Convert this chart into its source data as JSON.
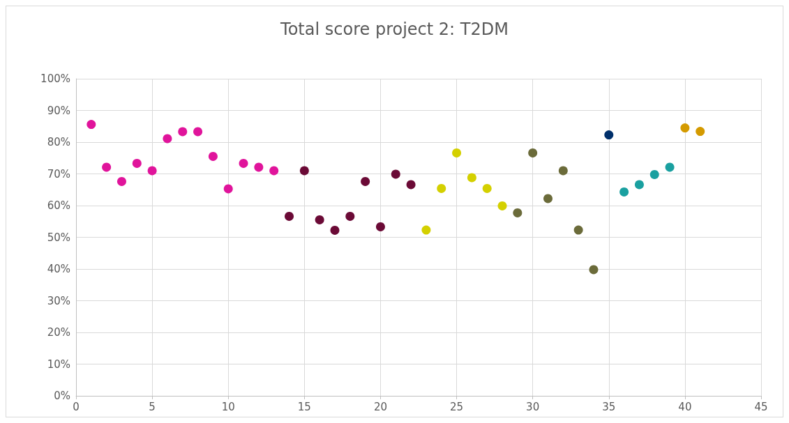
{
  "chart_data": {
    "type": "scatter",
    "title": "Total score project 2: T2DM",
    "series": [
      {
        "color": "#e0149b",
        "x": [
          1,
          2,
          3,
          4,
          5,
          6,
          7,
          8,
          9,
          10,
          11,
          12,
          13
        ],
        "values": [
          85.6,
          72.1,
          67.6,
          73.3,
          71.0,
          81.1,
          83.3,
          83.3,
          75.5,
          65.3,
          73.3,
          72.1,
          71.0
        ]
      },
      {
        "color": "#6b0a36",
        "x": [
          14,
          15,
          16,
          17,
          18,
          19,
          20,
          21,
          22
        ],
        "values": [
          56.6,
          71.0,
          55.5,
          52.2,
          56.6,
          67.6,
          53.3,
          69.9,
          66.6
        ]
      },
      {
        "color": "#d4d000",
        "x": [
          23,
          24,
          25,
          26,
          27,
          28
        ],
        "values": [
          52.3,
          65.4,
          76.6,
          68.8,
          65.4,
          59.9
        ]
      },
      {
        "color": "#6b6b3a",
        "x": [
          29,
          30,
          31,
          32,
          33,
          34
        ],
        "values": [
          57.7,
          76.6,
          62.2,
          71.0,
          52.3,
          39.8
        ]
      },
      {
        "color": "#00306b",
        "x": [
          35
        ],
        "values": [
          82.3
        ]
      },
      {
        "color": "#1aa0a0",
        "x": [
          36,
          37,
          38,
          39
        ],
        "values": [
          64.3,
          66.6,
          69.8,
          72.1
        ]
      },
      {
        "color": "#d49a00",
        "x": [
          40,
          41
        ],
        "values": [
          84.5,
          83.4
        ]
      }
    ],
    "xlim": [
      0,
      45
    ],
    "xticks": [
      0,
      5,
      10,
      15,
      20,
      25,
      30,
      35,
      40,
      45
    ],
    "ylim": [
      0,
      100
    ],
    "yticks": [
      {
        "value": 0,
        "label": "0%"
      },
      {
        "value": 10,
        "label": "10%"
      },
      {
        "value": 20,
        "label": "20%"
      },
      {
        "value": 30,
        "label": "30%"
      },
      {
        "value": 40,
        "label": "40%"
      },
      {
        "value": 50,
        "label": "50%"
      },
      {
        "value": 60,
        "label": "60%"
      },
      {
        "value": 70,
        "label": "70%"
      },
      {
        "value": 80,
        "label": "80%"
      },
      {
        "value": 90,
        "label": "90%"
      },
      {
        "value": 100,
        "label": "100%"
      }
    ],
    "grid": true,
    "marker": "circle"
  }
}
